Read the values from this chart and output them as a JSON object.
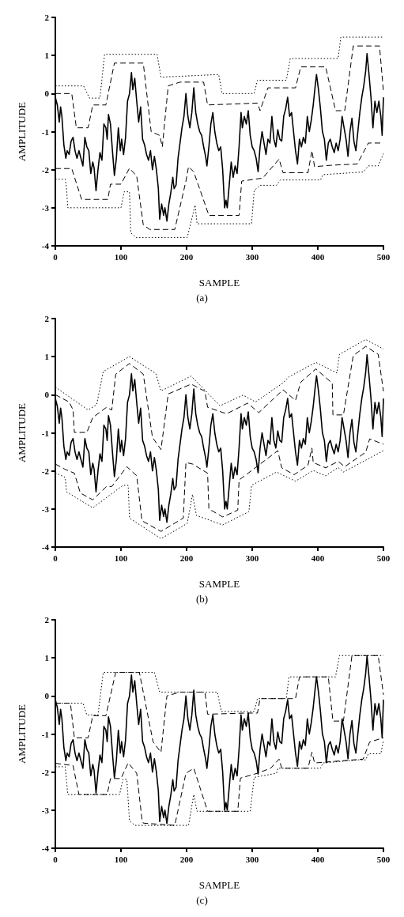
{
  "chart_data": [
    {
      "type": "line",
      "xlabel": "SAMPLE",
      "ylabel": "AMPLITUDE",
      "annotations": [
        "(a)"
      ],
      "xlim": [
        0,
        500
      ],
      "ylim": [
        -4,
        2
      ],
      "xticks": [
        0,
        100,
        200,
        300,
        400,
        500
      ],
      "yticks": [
        -4,
        -3,
        -2,
        -1,
        0,
        1,
        2
      ],
      "grid": false,
      "marker": "none",
      "series": [
        {
          "color": "#000000",
          "line_style": "solid",
          "x": [
            0,
            3,
            6,
            8,
            10,
            13,
            16,
            18,
            21,
            24,
            27,
            30,
            33,
            36,
            39,
            42,
            45,
            48,
            51,
            54,
            57,
            59,
            62,
            65,
            68,
            71,
            74,
            77,
            79,
            81,
            84,
            87,
            90,
            93,
            96,
            99,
            101,
            104,
            107,
            110,
            113,
            116,
            118,
            121,
            124,
            127,
            130,
            133,
            136,
            139,
            142,
            145,
            148,
            151,
            154,
            157,
            159,
            162,
            165,
            167,
            170,
            173,
            176,
            179,
            181,
            184,
            187,
            190,
            193,
            196,
            199,
            202,
            205,
            208,
            211,
            214,
            217,
            220,
            223,
            226,
            229,
            231,
            234,
            237,
            240,
            243,
            246,
            249,
            252,
            255,
            258,
            260,
            262,
            265,
            268,
            271,
            274,
            277,
            280,
            283,
            285,
            288,
            291,
            294,
            297,
            300,
            303,
            306,
            309,
            312,
            315,
            318,
            321,
            324,
            327,
            330,
            333,
            336,
            339,
            342,
            345,
            348,
            351,
            354,
            357,
            360,
            363,
            366,
            369,
            372,
            375,
            378,
            381,
            384,
            387,
            390,
            393,
            396,
            398,
            401,
            404,
            407,
            410,
            413,
            416,
            419,
            422,
            425,
            428,
            431,
            434,
            437,
            440,
            443,
            446,
            449,
            452,
            455,
            458,
            461,
            464,
            467,
            470,
            473,
            475,
            478,
            481,
            484,
            487,
            490,
            493,
            496,
            498,
            500
          ],
          "values": [
            -0.1,
            -0.3,
            -0.75,
            -0.35,
            -0.6,
            -1.35,
            -1.7,
            -1.5,
            -1.6,
            -1.25,
            -1.15,
            -1.5,
            -1.7,
            -1.5,
            -1.7,
            -1.9,
            -1.15,
            -1.4,
            -1.5,
            -2.1,
            -1.8,
            -1.95,
            -2.55,
            -2,
            -1.55,
            -1.75,
            -0.8,
            -0.9,
            -1.2,
            -0.55,
            -0.8,
            -1.5,
            -2.15,
            -1.7,
            -0.9,
            -1.5,
            -1.2,
            -1.6,
            -1.15,
            -0.2,
            0,
            0.55,
            0.1,
            0.4,
            -0.2,
            -0.75,
            -0.35,
            -1.2,
            -1.35,
            -1.6,
            -1.75,
            -1.5,
            -2,
            -1.65,
            -2,
            -2.5,
            -3.3,
            -2.9,
            -3.2,
            -3,
            -3.35,
            -2.9,
            -2.6,
            -2.2,
            -2.5,
            -2.4,
            -1.7,
            -1.3,
            -0.9,
            -0.6,
            0,
            -0.6,
            -0.9,
            -0.5,
            0.15,
            -0.5,
            -0.8,
            -1,
            -1.1,
            -1.4,
            -1.65,
            -1.9,
            -1.4,
            -0.8,
            -0.5,
            -1,
            -1.3,
            -1.5,
            -1.4,
            -2,
            -3,
            -2.8,
            -3,
            -2.4,
            -1.8,
            -2.2,
            -1.9,
            -2.1,
            -1.4,
            -0.5,
            -0.9,
            -0.6,
            -0.8,
            -0.45,
            -1.1,
            -1.4,
            -1.5,
            -1.7,
            -2.05,
            -1.4,
            -1,
            -1.3,
            -1.6,
            -1.2,
            -1.3,
            -0.6,
            -1.2,
            -1.4,
            -0.95,
            -1.2,
            -1.25,
            -0.6,
            -0.4,
            -0.1,
            -0.6,
            -0.5,
            -1,
            -1.5,
            -1.85,
            -1.2,
            -1.4,
            -1.15,
            -1.3,
            -0.6,
            -1,
            -0.7,
            -0.3,
            0.2,
            0.5,
            0.1,
            -0.4,
            -1,
            -1.2,
            -1.75,
            -1.3,
            -1.2,
            -1.4,
            -1.55,
            -1.3,
            -1.5,
            -1.2,
            -0.6,
            -0.9,
            -1.2,
            -1.65,
            -1,
            -0.65,
            -1.25,
            -1.5,
            -1,
            -0.5,
            -0.1,
            0.2,
            0.6,
            1.05,
            0.5,
            -0.1,
            -0.9,
            -0.2,
            -0.5,
            -0.2,
            -0.6,
            -1.1,
            -0.1
          ]
        },
        {
          "color": "#000000",
          "line_style": "dashed",
          "x": [
            0,
            25,
            32,
            50,
            57,
            77,
            90,
            134,
            146,
            159,
            163,
            172,
            190,
            226,
            232,
            308,
            312,
            324,
            366,
            374,
            412,
            427,
            441,
            454,
            494,
            500
          ],
          "values": [
            0,
            0,
            -0.9,
            -0.9,
            -0.3,
            -0.3,
            0.8,
            0.8,
            -1,
            -1.1,
            -1.4,
            0.2,
            0.3,
            0.3,
            -0.3,
            -0.25,
            -0.45,
            0.15,
            0.15,
            0.7,
            0.7,
            -0.45,
            -0.45,
            1.25,
            1.25,
            0.05
          ]
        },
        {
          "color": "#000000",
          "line_style": "dotted",
          "x": [
            0,
            43,
            52,
            68,
            75,
            155,
            161,
            249,
            254,
            303,
            308,
            352,
            358,
            431,
            435,
            500
          ],
          "values": [
            0.2,
            0.2,
            -0.12,
            -0.12,
            1.03,
            1.03,
            0.43,
            0.5,
            0,
            0,
            0.35,
            0.35,
            0.92,
            0.92,
            1.48,
            1.48
          ]
        },
        {
          "color": "#000000",
          "line_style": "dashed",
          "x": [
            0,
            25,
            40,
            80,
            84,
            100,
            113,
            124,
            134,
            144,
            182,
            199,
            203,
            211,
            234,
            280,
            284,
            316,
            341,
            347,
            385,
            391,
            395,
            423,
            460,
            477,
            500
          ],
          "values": [
            -1.97,
            -1.97,
            -2.78,
            -2.78,
            -2.38,
            -2.38,
            -1.96,
            -2.17,
            -3.45,
            -3.57,
            -3.57,
            -2.3,
            -1.92,
            -2.06,
            -3.2,
            -3.2,
            -2.3,
            -2.22,
            -1.72,
            -2.08,
            -2.08,
            -1.5,
            -1.92,
            -1.88,
            -1.85,
            -1.3,
            -1.3
          ]
        },
        {
          "color": "#000000",
          "line_style": "dotted",
          "x": [
            0,
            15,
            17,
            19,
            100,
            105,
            113,
            115,
            123,
            201,
            213,
            216,
            299,
            303,
            312,
            337,
            343,
            404,
            408,
            469,
            477,
            492,
            500
          ],
          "values": [
            -2.25,
            -2.25,
            -2.48,
            -3,
            -3,
            -2.58,
            -2.58,
            -3.66,
            -3.78,
            -3.78,
            -2.93,
            -3.42,
            -3.42,
            -2.55,
            -2.41,
            -2.41,
            -2.27,
            -2.27,
            -2.13,
            -2.06,
            -1.9,
            -1.9,
            -1.58
          ]
        }
      ]
    },
    {
      "type": "line",
      "xlabel": "SAMPLE",
      "ylabel": "AMPLITUDE",
      "annotations": [
        "(b)"
      ],
      "xlim": [
        0,
        500
      ],
      "ylim": [
        -4,
        2
      ],
      "xticks": [
        0,
        100,
        200,
        300,
        400,
        500
      ],
      "yticks": [
        -4,
        -3,
        -2,
        -1,
        0,
        1,
        2
      ],
      "grid": false,
      "marker": "none",
      "series": [
        {
          "color": "#000000",
          "line_style": "solid",
          "x": [
            0,
            3,
            6,
            8,
            10,
            13,
            16,
            18,
            21,
            24,
            27,
            30,
            33,
            36,
            39,
            42,
            45,
            48,
            51,
            54,
            57,
            59,
            62,
            65,
            68,
            71,
            74,
            77,
            79,
            81,
            84,
            87,
            90,
            93,
            96,
            99,
            101,
            104,
            107,
            110,
            113,
            116,
            118,
            121,
            124,
            127,
            130,
            133,
            136,
            139,
            142,
            145,
            148,
            151,
            154,
            157,
            159,
            162,
            165,
            167,
            170,
            173,
            176,
            179,
            181,
            184,
            187,
            190,
            193,
            196,
            199,
            202,
            205,
            208,
            211,
            214,
            217,
            220,
            223,
            226,
            229,
            231,
            234,
            237,
            240,
            243,
            246,
            249,
            252,
            255,
            258,
            260,
            262,
            265,
            268,
            271,
            274,
            277,
            280,
            283,
            285,
            288,
            291,
            294,
            297,
            300,
            303,
            306,
            309,
            312,
            315,
            318,
            321,
            324,
            327,
            330,
            333,
            336,
            339,
            342,
            345,
            348,
            351,
            354,
            357,
            360,
            363,
            366,
            369,
            372,
            375,
            378,
            381,
            384,
            387,
            390,
            393,
            396,
            398,
            401,
            404,
            407,
            410,
            413,
            416,
            419,
            422,
            425,
            428,
            431,
            434,
            437,
            440,
            443,
            446,
            449,
            452,
            455,
            458,
            461,
            464,
            467,
            470,
            473,
            475,
            478,
            481,
            484,
            487,
            490,
            493,
            496,
            498,
            500
          ],
          "values": [
            -0.1,
            -0.3,
            -0.75,
            -0.35,
            -0.6,
            -1.35,
            -1.7,
            -1.5,
            -1.6,
            -1.25,
            -1.15,
            -1.5,
            -1.7,
            -1.5,
            -1.7,
            -1.9,
            -1.15,
            -1.4,
            -1.5,
            -2.1,
            -1.8,
            -1.95,
            -2.55,
            -2,
            -1.55,
            -1.75,
            -0.8,
            -0.9,
            -1.2,
            -0.55,
            -0.8,
            -1.5,
            -2.15,
            -1.7,
            -0.9,
            -1.5,
            -1.2,
            -1.6,
            -1.15,
            -0.2,
            0,
            0.55,
            0.1,
            0.4,
            -0.2,
            -0.75,
            -0.35,
            -1.2,
            -1.35,
            -1.6,
            -1.75,
            -1.5,
            -2,
            -1.65,
            -2,
            -2.5,
            -3.3,
            -2.9,
            -3.2,
            -3,
            -3.35,
            -2.9,
            -2.6,
            -2.2,
            -2.5,
            -2.4,
            -1.7,
            -1.3,
            -0.9,
            -0.6,
            0,
            -0.6,
            -0.9,
            -0.5,
            0.15,
            -0.5,
            -0.8,
            -1,
            -1.1,
            -1.4,
            -1.65,
            -1.9,
            -1.4,
            -0.8,
            -0.5,
            -1,
            -1.3,
            -1.5,
            -1.4,
            -2,
            -3,
            -2.8,
            -3,
            -2.4,
            -1.8,
            -2.2,
            -1.9,
            -2.1,
            -1.4,
            -0.5,
            -0.9,
            -0.6,
            -0.8,
            -0.45,
            -1.1,
            -1.4,
            -1.5,
            -1.7,
            -2.05,
            -1.4,
            -1,
            -1.3,
            -1.6,
            -1.2,
            -1.3,
            -0.6,
            -1.2,
            -1.4,
            -0.95,
            -1.2,
            -1.25,
            -0.6,
            -0.4,
            -0.1,
            -0.6,
            -0.5,
            -1,
            -1.5,
            -1.85,
            -1.2,
            -1.4,
            -1.15,
            -1.3,
            -0.6,
            -1,
            -0.7,
            -0.3,
            0.2,
            0.5,
            0.1,
            -0.4,
            -1,
            -1.2,
            -1.75,
            -1.3,
            -1.2,
            -1.4,
            -1.55,
            -1.3,
            -1.5,
            -1.2,
            -0.6,
            -0.9,
            -1.2,
            -1.65,
            -1,
            -0.65,
            -1.25,
            -1.5,
            -1,
            -0.5,
            -0.1,
            0.2,
            0.6,
            1.05,
            0.5,
            -0.1,
            -0.9,
            -0.2,
            -0.5,
            -0.2,
            -0.6,
            -1.1,
            -0.1
          ]
        },
        {
          "color": "#000000",
          "line_style": "dashed",
          "x": [
            0,
            21,
            27,
            29,
            48,
            57,
            78,
            86,
            92,
            113,
            134,
            148,
            161,
            172,
            207,
            228,
            232,
            261,
            293,
            310,
            347,
            366,
            374,
            397,
            422,
            423,
            439,
            454,
            473,
            492,
            500
          ],
          "values": [
            0,
            -0.19,
            -0.4,
            -0.99,
            -0.99,
            -0.6,
            -0.33,
            -0.4,
            0.54,
            0.82,
            0.54,
            -1.12,
            -1.44,
            0.02,
            0.28,
            0.09,
            -0.33,
            -0.5,
            -0.22,
            -0.47,
            0.13,
            -0.15,
            0.33,
            0.68,
            0.3,
            -0.53,
            -0.53,
            1.03,
            1.27,
            1.06,
            0.09
          ]
        },
        {
          "color": "#000000",
          "line_style": "dotted",
          "x": [
            0,
            50,
            63,
            73,
            113,
            153,
            161,
            207,
            251,
            286,
            305,
            347,
            356,
            397,
            429,
            433,
            473,
            500
          ],
          "values": [
            0.2,
            -0.4,
            -0.26,
            0.61,
            1,
            0.56,
            0.1,
            0.49,
            -0.29,
            -0.01,
            -0.19,
            0.31,
            0.47,
            0.85,
            0.57,
            1.06,
            1.45,
            1.2
          ]
        },
        {
          "color": "#000000",
          "line_style": "dashed",
          "x": [
            0,
            15,
            29,
            38,
            57,
            78,
            86,
            109,
            124,
            132,
            161,
            195,
            199,
            209,
            232,
            234,
            255,
            278,
            280,
            339,
            345,
            364,
            385,
            391,
            393,
            412,
            431,
            441,
            473,
            479,
            500
          ],
          "values": [
            -1.82,
            -1.96,
            -2.06,
            -2.58,
            -2.76,
            -2.41,
            -2.41,
            -1.89,
            -2.13,
            -3.31,
            -3.59,
            -3.24,
            -1.78,
            -1.82,
            -2.06,
            -3,
            -3.21,
            -3.03,
            -2.24,
            -1.47,
            -1.92,
            -2.1,
            -1.85,
            -1.4,
            -1.78,
            -1.92,
            -1.75,
            -1.89,
            -1.51,
            -1.16,
            -1.3
          ]
        },
        {
          "color": "#000000",
          "line_style": "dotted",
          "x": [
            0,
            15,
            17,
            57,
            103,
            111,
            113,
            161,
            201,
            209,
            215,
            255,
            295,
            299,
            337,
            366,
            393,
            412,
            431,
            439,
            475,
            500
          ],
          "values": [
            -2.05,
            -2.17,
            -2.55,
            -2.97,
            -2.38,
            -2.38,
            -3.24,
            -3.78,
            -3.38,
            -2.62,
            -3.17,
            -3.42,
            -3.07,
            -2.38,
            -2.03,
            -2.27,
            -1.99,
            -2.13,
            -1.91,
            -2.03,
            -1.7,
            -1.47
          ]
        }
      ]
    },
    {
      "type": "line",
      "xlabel": "SAMPLE",
      "ylabel": "AMPLITUDE",
      "annotations": [
        "(c)"
      ],
      "xlim": [
        0,
        500
      ],
      "ylim": [
        -4,
        2
      ],
      "xticks": [
        0,
        100,
        200,
        300,
        400,
        500
      ],
      "yticks": [
        -4,
        -3,
        -2,
        -1,
        0,
        1,
        2
      ],
      "grid": false,
      "marker": "none",
      "series": [
        {
          "color": "#000000",
          "line_style": "solid",
          "x": [
            0,
            3,
            6,
            8,
            10,
            13,
            16,
            18,
            21,
            24,
            27,
            30,
            33,
            36,
            39,
            42,
            45,
            48,
            51,
            54,
            57,
            59,
            62,
            65,
            68,
            71,
            74,
            77,
            79,
            81,
            84,
            87,
            90,
            93,
            96,
            99,
            101,
            104,
            107,
            110,
            113,
            116,
            118,
            121,
            124,
            127,
            130,
            133,
            136,
            139,
            142,
            145,
            148,
            151,
            154,
            157,
            159,
            162,
            165,
            167,
            170,
            173,
            176,
            179,
            181,
            184,
            187,
            190,
            193,
            196,
            199,
            202,
            205,
            208,
            211,
            214,
            217,
            220,
            223,
            226,
            229,
            231,
            234,
            237,
            240,
            243,
            246,
            249,
            252,
            255,
            258,
            260,
            262,
            265,
            268,
            271,
            274,
            277,
            280,
            283,
            285,
            288,
            291,
            294,
            297,
            300,
            303,
            306,
            309,
            312,
            315,
            318,
            321,
            324,
            327,
            330,
            333,
            336,
            339,
            342,
            345,
            348,
            351,
            354,
            357,
            360,
            363,
            366,
            369,
            372,
            375,
            378,
            381,
            384,
            387,
            390,
            393,
            396,
            398,
            401,
            404,
            407,
            410,
            413,
            416,
            419,
            422,
            425,
            428,
            431,
            434,
            437,
            440,
            443,
            446,
            449,
            452,
            455,
            458,
            461,
            464,
            467,
            470,
            473,
            475,
            478,
            481,
            484,
            487,
            490,
            493,
            496,
            498,
            500
          ],
          "values": [
            -0.1,
            -0.3,
            -0.75,
            -0.35,
            -0.6,
            -1.35,
            -1.7,
            -1.5,
            -1.6,
            -1.25,
            -1.15,
            -1.5,
            -1.7,
            -1.5,
            -1.7,
            -1.9,
            -1.15,
            -1.4,
            -1.5,
            -2.1,
            -1.8,
            -1.95,
            -2.55,
            -2,
            -1.55,
            -1.75,
            -0.8,
            -0.9,
            -1.2,
            -0.55,
            -0.8,
            -1.5,
            -2.15,
            -1.7,
            -0.9,
            -1.5,
            -1.2,
            -1.6,
            -1.15,
            -0.2,
            0,
            0.55,
            0.1,
            0.4,
            -0.2,
            -0.75,
            -0.35,
            -1.2,
            -1.35,
            -1.6,
            -1.75,
            -1.5,
            -2,
            -1.65,
            -2,
            -2.5,
            -3.3,
            -2.9,
            -3.2,
            -3,
            -3.35,
            -2.9,
            -2.6,
            -2.2,
            -2.5,
            -2.4,
            -1.7,
            -1.3,
            -0.9,
            -0.6,
            0,
            -0.6,
            -0.9,
            -0.5,
            0.15,
            -0.5,
            -0.8,
            -1,
            -1.1,
            -1.4,
            -1.65,
            -1.9,
            -1.4,
            -0.8,
            -0.5,
            -1,
            -1.3,
            -1.5,
            -1.4,
            -2,
            -3,
            -2.8,
            -3,
            -2.4,
            -1.8,
            -2.2,
            -1.9,
            -2.1,
            -1.4,
            -0.5,
            -0.9,
            -0.6,
            -0.8,
            -0.45,
            -1.1,
            -1.4,
            -1.5,
            -1.7,
            -2.05,
            -1.4,
            -1,
            -1.3,
            -1.6,
            -1.2,
            -1.3,
            -0.6,
            -1.2,
            -1.4,
            -0.95,
            -1.2,
            -1.25,
            -0.6,
            -0.4,
            -0.1,
            -0.6,
            -0.5,
            -1,
            -1.5,
            -1.85,
            -1.2,
            -1.4,
            -1.15,
            -1.3,
            -0.6,
            -1,
            -0.7,
            -0.3,
            0.2,
            0.5,
            0.1,
            -0.4,
            -1,
            -1.2,
            -1.75,
            -1.3,
            -1.2,
            -1.4,
            -1.55,
            -1.3,
            -1.5,
            -1.2,
            -0.6,
            -0.9,
            -1.2,
            -1.65,
            -1,
            -0.65,
            -1.25,
            -1.5,
            -1,
            -0.5,
            -0.1,
            0.2,
            0.6,
            1.05,
            0.5,
            -0.1,
            -0.9,
            -0.2,
            -0.5,
            -0.2,
            -0.6,
            -1.1,
            -0.1
          ]
        },
        {
          "color": "#000000",
          "line_style": "dashed",
          "x": [
            0,
            23,
            29,
            50,
            57,
            77,
            92,
            128,
            149,
            161,
            170,
            190,
            228,
            232,
            289,
            308,
            312,
            366,
            372,
            416,
            423,
            439,
            452,
            492,
            500
          ],
          "values": [
            -0.19,
            -0.19,
            -1.1,
            -1.1,
            -0.52,
            -0.52,
            0.62,
            0.62,
            -1.21,
            -1.48,
            0,
            0.1,
            0.1,
            -0.48,
            -0.45,
            -0.45,
            -0.07,
            -0.07,
            0.5,
            0.5,
            -0.66,
            -0.66,
            1.06,
            1.06,
            0.03
          ]
        },
        {
          "color": "#000000",
          "line_style": "dotted",
          "x": [
            0,
            42,
            48,
            65,
            73,
            151,
            159,
            247,
            253,
            303,
            308,
            352,
            356,
            427,
            433,
            500
          ],
          "values": [
            -0.19,
            -0.19,
            -0.5,
            -0.5,
            0.62,
            0.62,
            0.1,
            0.1,
            -0.41,
            -0.41,
            -0.07,
            -0.07,
            0.5,
            0.5,
            1.06,
            1.06
          ]
        },
        {
          "color": "#000000",
          "line_style": "dashed",
          "x": [
            0,
            27,
            36,
            79,
            84,
            100,
            111,
            124,
            132,
            134,
            182,
            199,
            211,
            232,
            278,
            282,
            308,
            328,
            341,
            345,
            385,
            391,
            395,
            469,
            479,
            500
          ],
          "values": [
            -1.77,
            -1.83,
            -2.59,
            -2.59,
            -2.17,
            -2.17,
            -1.76,
            -2.03,
            -3.24,
            -3.34,
            -3.4,
            -2.03,
            -1.9,
            -3.03,
            -3.03,
            -2.16,
            -2.03,
            -1.9,
            -1.66,
            -1.9,
            -1.9,
            -1.48,
            -1.76,
            -1.66,
            -1.21,
            -1.1
          ]
        },
        {
          "color": "#000000",
          "line_style": "dotted",
          "x": [
            0,
            15,
            19,
            98,
            103,
            109,
            113,
            121,
            203,
            211,
            216,
            297,
            303,
            337,
            339,
            404,
            408,
            462,
            473,
            477,
            496,
            500
          ],
          "values": [
            -1.86,
            -1.86,
            -2.59,
            -2.59,
            -2.19,
            -2.19,
            -3.28,
            -3.4,
            -3.4,
            -2.59,
            -3.03,
            -3.03,
            -2.14,
            -2.03,
            -1.9,
            -1.9,
            -1.76,
            -1.68,
            -1.68,
            -1.52,
            -1.52,
            -1.17
          ]
        }
      ]
    }
  ]
}
